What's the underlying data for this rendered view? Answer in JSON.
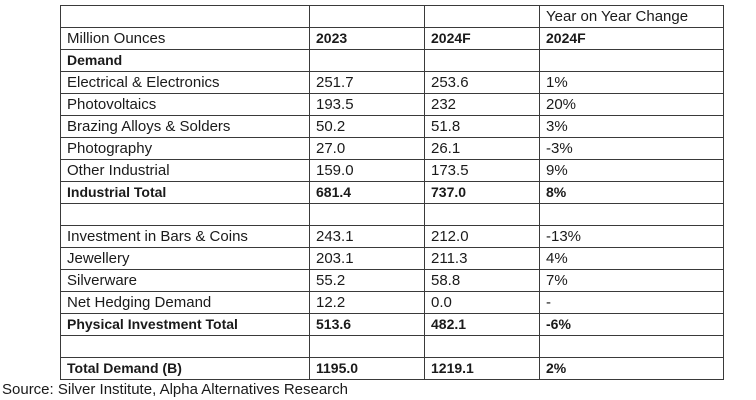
{
  "table": {
    "header_top": {
      "col4": "Year on Year Change"
    },
    "header": {
      "col1": "Million Ounces",
      "col2": "2023",
      "col3": "2024F",
      "col4": "2024F"
    },
    "section_demand": "Demand",
    "industrial_rows": [
      {
        "label": "Electrical & Electronics",
        "y2023": "251.7",
        "y2024f": "253.6",
        "yoy": "1%"
      },
      {
        "label": "Photovoltaics",
        "y2023": "193.5",
        "y2024f": "232",
        "yoy": "20%"
      },
      {
        "label": "Brazing Alloys & Solders",
        "y2023": "50.2",
        "y2024f": "51.8",
        "yoy": "3%"
      },
      {
        "label": "Photography",
        "y2023": "27.0",
        "y2024f": "26.1",
        "yoy": "-3%"
      },
      {
        "label": "Other Industrial",
        "y2023": "159.0",
        "y2024f": "173.5",
        "yoy": "9%"
      }
    ],
    "industrial_total": {
      "label": "Industrial Total",
      "y2023": "681.4",
      "y2024f": "737.0",
      "yoy": "8%"
    },
    "investment_rows": [
      {
        "label": "Investment in Bars & Coins",
        "y2023": "243.1",
        "y2024f": "212.0",
        "yoy": "-13%"
      },
      {
        "label": "Jewellery",
        "y2023": "203.1",
        "y2024f": "211.3",
        "yoy": "4%"
      },
      {
        "label": "Silverware",
        "y2023": "55.2",
        "y2024f": "58.8",
        "yoy": "7%"
      },
      {
        "label": "Net Hedging Demand",
        "y2023": "12.2",
        "y2024f": "0.0",
        "yoy": "-"
      }
    ],
    "physical_total": {
      "label": "Physical Investment Total",
      "y2023": "513.6",
      "y2024f": "482.1",
      "yoy": "-6%"
    },
    "total_demand": {
      "label": "Total Demand (B)",
      "y2023": "1195.0",
      "y2024f": "1219.1",
      "yoy": "2%"
    }
  },
  "source": "Source: Silver Institute, Alpha Alternatives Research"
}
